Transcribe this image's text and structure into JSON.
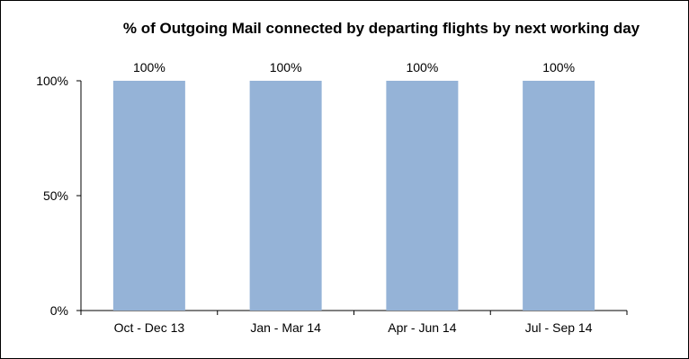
{
  "chart_data": {
    "type": "bar",
    "title": "% of Outgoing Mail connected by departing flights by next working day",
    "xlabel": "",
    "ylabel": "",
    "categories": [
      "Oct - Dec 13",
      "Jan - Mar 14",
      "Apr - Jun 14",
      "Jul - Sep 14"
    ],
    "values": [
      100,
      100,
      100,
      100
    ],
    "data_labels": [
      "100%",
      "100%",
      "100%",
      "100%"
    ],
    "ylim": [
      0,
      100
    ],
    "yticks": [
      0,
      50,
      100
    ],
    "ytick_labels": [
      "0%",
      "50%",
      "100%"
    ],
    "grid": false,
    "legend": "none",
    "bar_color": "#95b3d7"
  }
}
